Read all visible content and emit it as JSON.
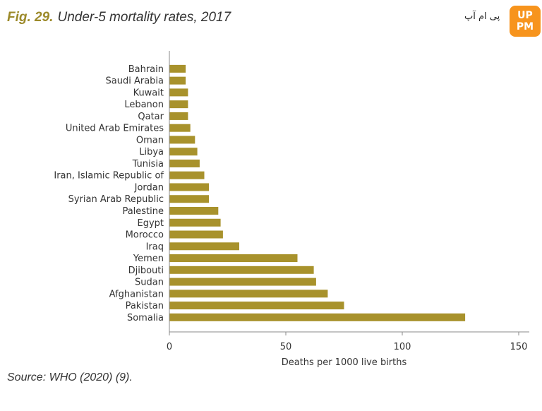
{
  "figure": {
    "number": "Fig. 29.",
    "title": "Under-5 mortality rates, 2017",
    "source": "Source: WHO (2020) (9)."
  },
  "watermark": {
    "text": "پی ام آپ",
    "badge": "UP PM",
    "badge_color": "#f7941d"
  },
  "chart_data": {
    "type": "bar",
    "orientation": "horizontal",
    "categories": [
      "Bahrain",
      "Saudi Arabia",
      "Kuwait",
      "Lebanon",
      "Qatar",
      "United Arab Emirates",
      "Oman",
      "Libya",
      "Tunisia",
      "Iran, Islamic Republic of",
      "Jordan",
      "Syrian Arab Republic",
      "Palestine",
      "Egypt",
      "Morocco",
      "Iraq",
      "Yemen",
      "Djibouti",
      "Sudan",
      "Afghanistan",
      "Pakistan",
      "Somalia"
    ],
    "values": [
      7,
      7,
      8,
      8,
      8,
      9,
      11,
      12,
      13,
      15,
      17,
      17,
      21,
      22,
      23,
      30,
      55,
      62,
      63,
      68,
      75,
      127
    ],
    "xlabel": "Deaths per 1000 live births",
    "xlim": [
      0,
      150
    ],
    "xticks": [
      0,
      50,
      100,
      150
    ],
    "bar_color": "#a8922c",
    "axis_color": "#888888",
    "grid": false
  }
}
